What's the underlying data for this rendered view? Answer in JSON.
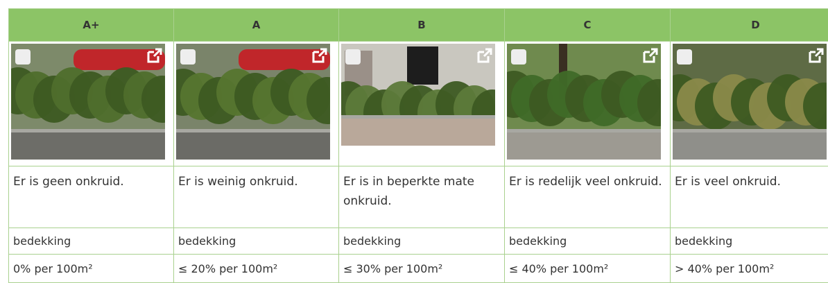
{
  "table": {
    "header": [
      "A+",
      "A",
      "B",
      "C",
      "D"
    ],
    "descriptions": [
      "Er is geen onkruid.",
      "Er is weinig onkruid.",
      "Er is in beperkte mate onkruid.",
      "Er is redelijk veel onkruid.",
      "Er is veel onkruid."
    ],
    "labels": [
      "bedekking",
      "bedekking",
      "bedekking",
      "bedekking",
      "bedekking"
    ],
    "values": [
      "0% per 100m²",
      "≤ 20% per 100m²",
      "≤ 30% per 100m²",
      "≤ 40% per 100m²",
      "> 40% per 100m²"
    ]
  }
}
